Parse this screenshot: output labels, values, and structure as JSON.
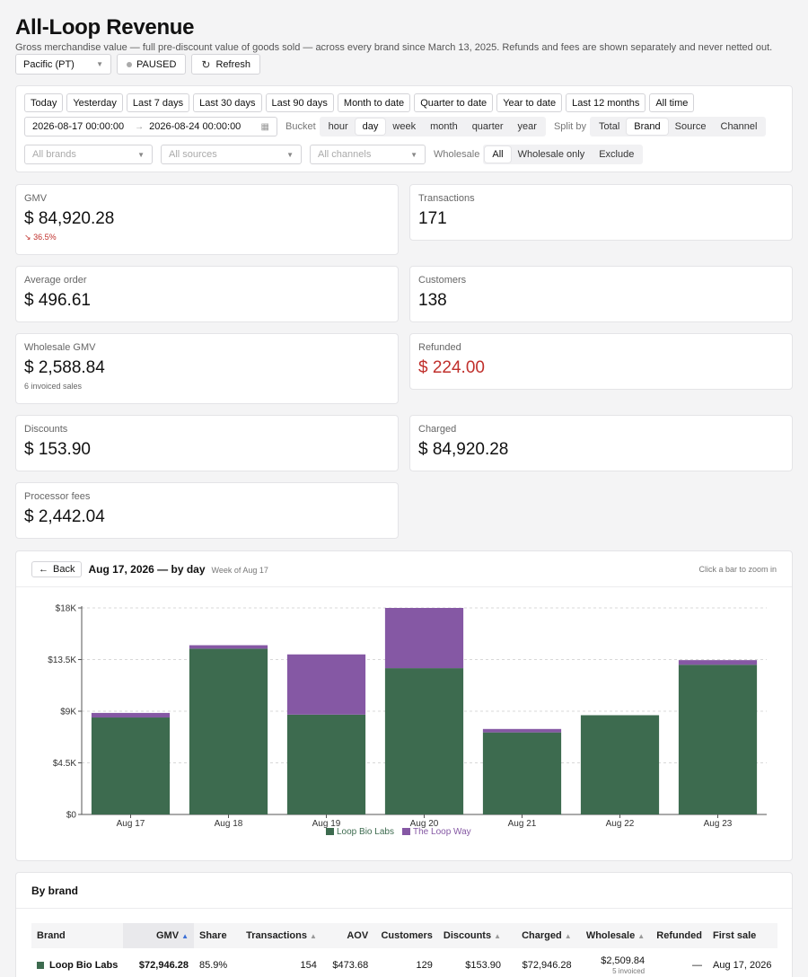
{
  "header": {
    "title": "All-Loop Revenue",
    "subtitle": "Gross merchandise value — full pre-discount value of goods sold — across every brand since March 13, 2025. Refunds and fees are shown separately and never netted out.",
    "timezone": "Pacific (PT)",
    "status": "PAUSED",
    "refresh_label": "Refresh"
  },
  "filters": {
    "presets": [
      "Today",
      "Yesterday",
      "Last 7 days",
      "Last 30 days",
      "Last 90 days",
      "Month to date",
      "Quarter to date",
      "Year to date",
      "Last 12 months",
      "All time"
    ],
    "date_from": "2026-08-17 00:00:00",
    "date_to": "2026-08-24 00:00:00",
    "bucket_label": "Bucket",
    "buckets": [
      "hour",
      "day",
      "week",
      "month",
      "quarter",
      "year"
    ],
    "bucket_selected": "day",
    "split_label": "Split by",
    "splits": [
      "Total",
      "Brand",
      "Source",
      "Channel"
    ],
    "split_selected": "Brand",
    "brands_placeholder": "All brands",
    "sources_placeholder": "All sources",
    "channels_placeholder": "All channels",
    "wholesale_label": "Wholesale",
    "wholesale_options": [
      "All",
      "Wholesale only",
      "Exclude"
    ],
    "wholesale_selected": "All"
  },
  "kpis": {
    "gmv": {
      "label": "GMV",
      "value": "$ 84,920.28",
      "change": "36.5%"
    },
    "transactions": {
      "label": "Transactions",
      "value": "171"
    },
    "avg_order": {
      "label": "Average order",
      "value": "$ 496.61"
    },
    "customers": {
      "label": "Customers",
      "value": "138"
    },
    "wholesale": {
      "label": "Wholesale GMV",
      "value": "$ 2,588.84",
      "sub": "6 invoiced sales"
    },
    "refunded": {
      "label": "Refunded",
      "value": "$ 224.00"
    },
    "discounts": {
      "label": "Discounts",
      "value": "$ 153.90"
    },
    "charged": {
      "label": "Charged",
      "value": "$ 84,920.28"
    },
    "fees": {
      "label": "Processor fees",
      "value": "$ 2,442.04"
    }
  },
  "chart": {
    "back_label": "Back",
    "title": "Aug 17, 2026 — by day",
    "week_label": "Week of Aug 17",
    "hint": "Click a bar to zoom in"
  },
  "chart_data": {
    "type": "bar",
    "stacked": true,
    "categories": [
      "Aug 17",
      "Aug 18",
      "Aug 19",
      "Aug 20",
      "Aug 21",
      "Aug 22",
      "Aug 23"
    ],
    "series": [
      {
        "name": "Loop Bio Labs",
        "color": "#3d6b4f",
        "values": [
          8450,
          14450,
          8700,
          12750,
          7150,
          8650,
          13050
        ]
      },
      {
        "name": "The Loop Way",
        "color": "#8558a4",
        "values": [
          400,
          300,
          5250,
          5250,
          300,
          0,
          400
        ]
      }
    ],
    "y_ticks": [
      "$0",
      "$4.5K",
      "$9K",
      "$13.5K",
      "$18K"
    ],
    "ylim": [
      0,
      18000
    ],
    "grid": true,
    "legend": "bottom"
  },
  "brand_table": {
    "title": "By brand",
    "columns": [
      "Brand",
      "GMV",
      "Share",
      "Transactions",
      "AOV",
      "Customers",
      "Discounts",
      "Charged",
      "Wholesale",
      "Refunded",
      "First sale"
    ],
    "rows": [
      {
        "brand": "Loop Bio Labs",
        "color": "#3d6b4f",
        "gmv": "$72,946.28",
        "share": "85.9%",
        "transactions": "154",
        "aov": "$473.68",
        "customers": "129",
        "discounts": "$153.90",
        "charged": "$72,946.28",
        "wholesale": "$2,509.84",
        "wholesale_sub": "5 invoiced",
        "refunded": "—",
        "first_sale": "Aug 17, 2026"
      }
    ]
  }
}
